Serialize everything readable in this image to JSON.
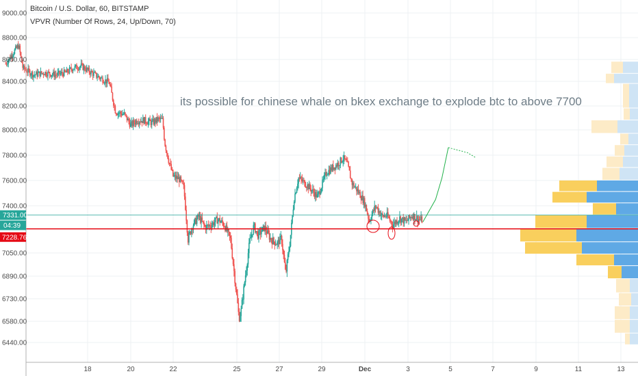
{
  "header": {
    "title": "Bitcoin / U.S. Dollar, 60, BITSTAMP",
    "indicator": "VPVR (Number Of Rows, 24, Up/Down, 70)"
  },
  "annotation": "its possible for chinese whale  on bkex exchange to explode btc to above 7700",
  "price_tags": {
    "last_price": "7331.00",
    "countdown": "04:39",
    "line_price": "7228.76"
  },
  "colors": {
    "up": "#26a69a",
    "down": "#ef5350",
    "line_red": "#e50914",
    "line_teal": "#26a69a",
    "vp_up": "#5fa9e5",
    "vp_down": "#f9cf5d",
    "vp_up_light": "#cfe4f5",
    "vp_down_light": "#fdebc7",
    "projection": "#21b14a"
  },
  "chart_data": {
    "type": "candlestick",
    "title": "Bitcoin / U.S. Dollar, 60, BITSTAMP",
    "y_ticks": [
      "9000.00",
      "8800.00",
      "8600.00",
      "8400.00",
      "8200.00",
      "8000.00",
      "7800.00",
      "7600.00",
      "7400.00",
      "7050.00",
      "6890.00",
      "6730.00",
      "6580.00",
      "6440.00"
    ],
    "x_ticks": [
      "18",
      "20",
      "22",
      "25",
      "27",
      "29",
      "Dec",
      "3",
      "5",
      "7",
      "9",
      "11",
      "13"
    ],
    "x_tick_days": [
      18,
      20,
      22,
      25,
      27,
      29,
      31,
      33,
      35,
      37,
      39,
      41,
      43
    ],
    "x_range_days": [
      14.2,
      44.0
    ],
    "price_path": [
      [
        14.2,
        8560
      ],
      [
        14.5,
        8650
      ],
      [
        14.8,
        8730
      ],
      [
        15.0,
        8520
      ],
      [
        15.5,
        8460
      ],
      [
        16.0,
        8480
      ],
      [
        16.5,
        8460
      ],
      [
        17.0,
        8480
      ],
      [
        17.3,
        8520
      ],
      [
        17.7,
        8540
      ],
      [
        18.0,
        8500
      ],
      [
        18.5,
        8440
      ],
      [
        19.0,
        8390
      ],
      [
        19.3,
        8150
      ],
      [
        19.7,
        8130
      ],
      [
        20.0,
        8040
      ],
      [
        20.3,
        8080
      ],
      [
        20.6,
        8080
      ],
      [
        21.0,
        8060
      ],
      [
        21.3,
        8090
      ],
      [
        21.5,
        8080
      ],
      [
        21.6,
        7900
      ],
      [
        21.8,
        7750
      ],
      [
        22.0,
        7630
      ],
      [
        22.3,
        7610
      ],
      [
        22.5,
        7540
      ],
      [
        22.7,
        7150
      ],
      [
        22.9,
        7250
      ],
      [
        23.2,
        7320
      ],
      [
        23.5,
        7240
      ],
      [
        23.8,
        7260
      ],
      [
        24.1,
        7300
      ],
      [
        24.4,
        7260
      ],
      [
        24.7,
        7150
      ],
      [
        24.9,
        6880
      ],
      [
        25.1,
        6600
      ],
      [
        25.2,
        6650
      ],
      [
        25.4,
        6890
      ],
      [
        25.6,
        7130
      ],
      [
        25.8,
        7250
      ],
      [
        26.0,
        7180
      ],
      [
        26.3,
        7240
      ],
      [
        26.6,
        7150
      ],
      [
        26.9,
        7120
      ],
      [
        27.1,
        7160
      ],
      [
        27.3,
        6900
      ],
      [
        27.5,
        7130
      ],
      [
        27.7,
        7460
      ],
      [
        27.9,
        7620
      ],
      [
        28.2,
        7580
      ],
      [
        28.5,
        7530
      ],
      [
        28.8,
        7470
      ],
      [
        29.0,
        7560
      ],
      [
        29.2,
        7660
      ],
      [
        29.5,
        7700
      ],
      [
        29.8,
        7740
      ],
      [
        30.0,
        7780
      ],
      [
        30.2,
        7720
      ],
      [
        30.4,
        7580
      ],
      [
        30.7,
        7510
      ],
      [
        31.0,
        7420
      ],
      [
        31.2,
        7290
      ],
      [
        31.5,
        7400
      ],
      [
        31.8,
        7320
      ],
      [
        32.0,
        7330
      ],
      [
        32.3,
        7260
      ],
      [
        32.6,
        7310
      ],
      [
        32.9,
        7280
      ],
      [
        33.2,
        7330
      ],
      [
        33.5,
        7300
      ],
      [
        33.7,
        7290
      ]
    ],
    "projection_path": [
      [
        33.7,
        7280
      ],
      [
        34.3,
        7450
      ],
      [
        34.6,
        7620
      ],
      [
        34.9,
        7860
      ],
      [
        35.8,
        7820
      ],
      [
        36.2,
        7780
      ]
    ],
    "horizontal_lines": [
      {
        "price": 7331,
        "color": "teal"
      },
      {
        "price": 7228.76,
        "color": "red"
      }
    ],
    "volume_profile": [
      {
        "price": 8580,
        "up": 22,
        "down": 17
      },
      {
        "price": 8470,
        "up": 35,
        "down": 12
      },
      {
        "price": 8380,
        "up": 13,
        "down": 9
      },
      {
        "price": 8180,
        "up": 12,
        "down": 9
      },
      {
        "price": 8080,
        "up": 30,
        "down": 38
      },
      {
        "price": 7970,
        "up": 14,
        "down": 12
      },
      {
        "price": 7880,
        "up": 20,
        "down": 14
      },
      {
        "price": 7790,
        "up": 22,
        "down": 24
      },
      {
        "price": 7700,
        "up": 27,
        "down": 25
      },
      {
        "price": 7600,
        "up": 60,
        "down": 55
      },
      {
        "price": 7510,
        "up": 75,
        "down": 50
      },
      {
        "price": 7420,
        "up": 32,
        "down": 34
      },
      {
        "price": 7330,
        "up": 75,
        "down": 75
      },
      {
        "price": 7230,
        "up": 90,
        "down": 82
      },
      {
        "price": 7130,
        "up": 82,
        "down": 83
      },
      {
        "price": 7040,
        "up": 35,
        "down": 55
      },
      {
        "price": 6960,
        "up": 24,
        "down": 20
      },
      {
        "price": 6870,
        "up": 12,
        "down": 20
      },
      {
        "price": 6770,
        "up": 10,
        "down": 18
      },
      {
        "price": 6680,
        "up": 12,
        "down": 22
      },
      {
        "price": 6590,
        "up": 12,
        "down": 22
      },
      {
        "price": 6500,
        "up": 12,
        "down": 7
      }
    ]
  }
}
